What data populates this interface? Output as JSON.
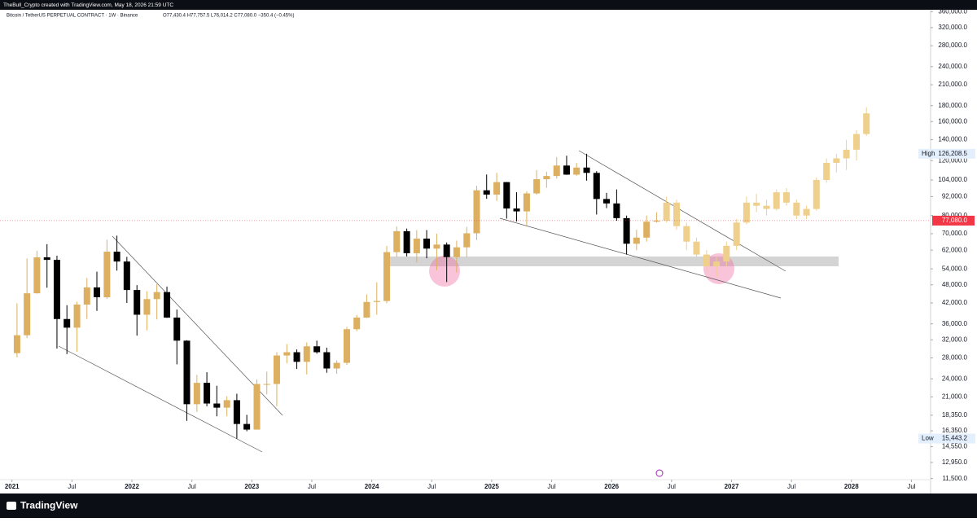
{
  "chart_data": {
    "type": "candlestick",
    "header": "TheBull_Crypto created with TradingView.com, May 18, 2026 21:59 UTC",
    "title": "Bitcoin / TetherUS PERPETUAL CONTRACT · 1W · Binance",
    "ohlc_legend": "O77,430.4 H77,757.5 L76,014.2 C77,080.0 −350.4 (−0.45%)",
    "brand": "TradingView",
    "log_scale": true,
    "xlim": [
      2020.9,
      2028.66
    ],
    "ylim": [
      10300,
      365000
    ],
    "xticks": [
      {
        "value": 2021,
        "label": "2021"
      },
      {
        "value": 2021.5,
        "label": "Jul"
      },
      {
        "value": 2022,
        "label": "2022"
      },
      {
        "value": 2022.5,
        "label": "Jul"
      },
      {
        "value": 2023,
        "label": "2023"
      },
      {
        "value": 2023.5,
        "label": "Jul"
      },
      {
        "value": 2024,
        "label": "2024"
      },
      {
        "value": 2024.5,
        "label": "Jul"
      },
      {
        "value": 2025,
        "label": "2025"
      },
      {
        "value": 2025.5,
        "label": "Jul"
      },
      {
        "value": 2026,
        "label": "2026"
      },
      {
        "value": 2026.5,
        "label": "Jul"
      },
      {
        "value": 2027,
        "label": "2027"
      },
      {
        "value": 2027.5,
        "label": "Jul"
      },
      {
        "value": 2028,
        "label": "2028"
      },
      {
        "value": 2028.5,
        "label": "Jul"
      }
    ],
    "yticks": [
      {
        "value": 360000,
        "label": "360,000.0"
      },
      {
        "value": 320000,
        "label": "320,000.0"
      },
      {
        "value": 280000,
        "label": "280,000.0"
      },
      {
        "value": 240000,
        "label": "240,000.0"
      },
      {
        "value": 210000,
        "label": "210,000.0"
      },
      {
        "value": 180000,
        "label": "180,000.0"
      },
      {
        "value": 160000,
        "label": "160,000.0"
      },
      {
        "value": 140000,
        "label": "140,000.0"
      },
      {
        "value": 120000,
        "label": "120,000.0"
      },
      {
        "value": 104000,
        "label": "104,000.0"
      },
      {
        "value": 92000,
        "label": "92,000.0"
      },
      {
        "value": 80000,
        "label": "80,000.0"
      },
      {
        "value": 70000,
        "label": "70,000.0"
      },
      {
        "value": 62000,
        "label": "62,000.0"
      },
      {
        "value": 54000,
        "label": "54,000.0"
      },
      {
        "value": 48000,
        "label": "48,000.0"
      },
      {
        "value": 42000,
        "label": "42,000.0"
      },
      {
        "value": 36000,
        "label": "36,000.0"
      },
      {
        "value": 32000,
        "label": "32,000.0"
      },
      {
        "value": 28000,
        "label": "28,000.0"
      },
      {
        "value": 24000,
        "label": "24,000.0"
      },
      {
        "value": 21000,
        "label": "21,000.0"
      },
      {
        "value": 18350,
        "label": "18,350.0"
      },
      {
        "value": 16350,
        "label": "16,350.0"
      },
      {
        "value": 14550,
        "label": "14,550.0"
      },
      {
        "value": 12950,
        "label": "12,950.0"
      },
      {
        "value": 11500,
        "label": "11,500.0"
      }
    ],
    "price_marks": [
      {
        "name": "High",
        "value": 126208.5,
        "label": "126,208.5",
        "color": "#e3effd"
      },
      {
        "name": "Low",
        "value": 15443.2,
        "label": "15,443.2",
        "color": "#e3effd"
      }
    ],
    "last_price": {
      "value": 77080,
      "label": "77,080.0",
      "color": "#f23645"
    },
    "series": [
      {
        "up_color": "#dcb060",
        "down_color": "#000000",
        "x": [
          2021.042,
          2021.125,
          2021.208,
          2021.292,
          2021.375,
          2021.458,
          2021.542,
          2021.625,
          2021.708,
          2021.792,
          2021.875,
          2021.958,
          2022.042,
          2022.125,
          2022.208,
          2022.292,
          2022.375,
          2022.458,
          2022.542,
          2022.625,
          2022.708,
          2022.792,
          2022.875,
          2022.958,
          2023.042,
          2023.125,
          2023.208,
          2023.292,
          2023.375,
          2023.458,
          2023.542,
          2023.625,
          2023.708,
          2023.792,
          2023.875,
          2023.958,
          2024.042,
          2024.125,
          2024.208,
          2024.292,
          2024.375,
          2024.458,
          2024.542,
          2024.625,
          2024.708,
          2024.792,
          2024.875,
          2024.958,
          2025.042,
          2025.125,
          2025.208,
          2025.292,
          2025.375,
          2025.458,
          2025.542,
          2025.625,
          2025.708,
          2025.792,
          2025.875,
          2025.958,
          2026.042,
          2026.125,
          2026.208,
          2026.292,
          2026.375
        ],
        "open": [
          29000,
          33100,
          45100,
          58800,
          57700,
          37300,
          35000,
          41500,
          47100,
          43800,
          61300,
          57000,
          46200,
          38500,
          43200,
          45500,
          37700,
          31800,
          19900,
          23300,
          20000,
          19400,
          20500,
          17200,
          16500,
          23100,
          23100,
          28500,
          29200,
          27200,
          30500,
          29200,
          25900,
          27000,
          34600,
          37700,
          42300,
          42600,
          61100,
          71300,
          60600,
          67500,
          62700,
          64600,
          58900,
          63300,
          70200,
          96400,
          93400,
          102400,
          84300,
          82500,
          94200,
          104600,
          107100,
          115700,
          108200,
          114000,
          109600,
          90400,
          87500,
          78500,
          65000,
          68000,
          76500
        ],
        "high": [
          41900,
          58300,
          61700,
          64800,
          59500,
          41300,
          42400,
          50500,
          52900,
          67000,
          69000,
          59000,
          47900,
          45800,
          48200,
          47400,
          40000,
          31900,
          24700,
          25200,
          22800,
          21100,
          21500,
          18400,
          23900,
          25300,
          29200,
          31000,
          29800,
          31400,
          31800,
          30200,
          27500,
          35200,
          38400,
          44700,
          48900,
          64000,
          73800,
          72700,
          71900,
          71900,
          70000,
          65600,
          66500,
          73600,
          99600,
          108300,
          109600,
          102500,
          95000,
          95700,
          111900,
          110500,
          123200,
          124400,
          117900,
          126208.5,
          111000,
          94600,
          97000,
          80000,
          72000,
          80000,
          82000
        ],
        "low": [
          28100,
          32400,
          45000,
          47000,
          30000,
          28800,
          29300,
          37300,
          39600,
          43300,
          53300,
          42000,
          33000,
          34300,
          37200,
          37600,
          26700,
          17600,
          18800,
          19600,
          18200,
          18200,
          15443.2,
          16300,
          16500,
          21400,
          19600,
          26900,
          25800,
          24800,
          28900,
          25100,
          24900,
          26600,
          34100,
          37600,
          38500,
          41900,
          59000,
          59200,
          56600,
          58400,
          53500,
          49000,
          52600,
          58900,
          66800,
          90500,
          89200,
          78200,
          76600,
          74400,
          93400,
          98200,
          105100,
          108000,
          107300,
          103500,
          80600,
          84500,
          77000,
          60000,
          62000,
          66000,
          76000
        ],
        "close": [
          33100,
          45100,
          58800,
          57700,
          37300,
          35000,
          41500,
          47100,
          43800,
          61300,
          57000,
          46200,
          38500,
          43200,
          45500,
          37700,
          31800,
          19900,
          23300,
          20000,
          19400,
          20500,
          17200,
          16500,
          23100,
          23100,
          28500,
          29200,
          27200,
          30500,
          29200,
          25900,
          27000,
          34600,
          37700,
          42300,
          42600,
          61100,
          71300,
          60600,
          67500,
          62700,
          64600,
          58900,
          63300,
          70200,
          96400,
          93400,
          102400,
          84300,
          82500,
          94200,
          104600,
          107100,
          115700,
          108200,
          114000,
          109600,
          90400,
          87500,
          78500,
          65000,
          68000,
          76500,
          77080
        ]
      },
      {
        "up_color": "#efcf8c",
        "down_color": "#efcf8c",
        "x": [
          2026.458,
          2026.542,
          2026.625,
          2026.708,
          2026.792,
          2026.875,
          2026.958,
          2027.042,
          2027.125,
          2027.208,
          2027.292,
          2027.375,
          2027.458,
          2027.542,
          2027.625,
          2027.708,
          2027.792,
          2027.875,
          2027.958,
          2028.042,
          2028.125
        ],
        "open": [
          77080,
          88000,
          74000,
          66000,
          60000,
          55000,
          57000,
          64000,
          76000,
          88000,
          86000,
          84000,
          95000,
          88000,
          80000,
          84000,
          104000,
          118000,
          122000,
          130000,
          146000
        ],
        "high": [
          92000,
          90000,
          76000,
          68000,
          62000,
          59000,
          66000,
          78000,
          92000,
          94000,
          90000,
          97000,
          98000,
          90000,
          86000,
          106000,
          122000,
          126000,
          140000,
          150000,
          178000
        ],
        "low": [
          76000,
          72000,
          62000,
          57000,
          53000,
          51000,
          55000,
          62000,
          75000,
          82000,
          80000,
          83000,
          86000,
          78000,
          78000,
          83000,
          102000,
          110000,
          112000,
          120000,
          144000
        ],
        "close": [
          88000,
          74000,
          66000,
          60000,
          55000,
          57000,
          64000,
          76000,
          88000,
          86000,
          84000,
          95000,
          88000,
          80000,
          84000,
          104000,
          118000,
          122000,
          130000,
          146000,
          170000
        ]
      }
    ]
  }
}
